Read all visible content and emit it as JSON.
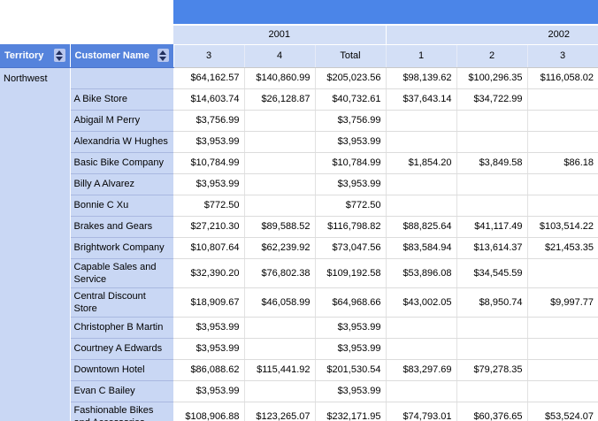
{
  "colors": {
    "band": "#4b85e8",
    "hdr": "#5583dc",
    "lightblue": "#d3dff6",
    "leftcol": "#c9d7f4",
    "custline": "#a9b8e0",
    "grid": "#dcdcdc",
    "iconbg": "#b9c7ee",
    "iconfg": "#222f5e"
  },
  "table": {
    "column_headers": {
      "territory": "Territory",
      "customer": "Customer Name"
    },
    "year_groups": [
      {
        "label": "2001",
        "span": 3
      },
      {
        "label": "2002",
        "span": 3
      }
    ],
    "period_headers": [
      "3",
      "4",
      "Total",
      "1",
      "2",
      "3"
    ],
    "rows": [
      {
        "territory": "Northwest",
        "customer": "",
        "values": [
          "$64,162.57",
          "$140,860.99",
          "$205,023.56",
          "$98,139.62",
          "$100,296.35",
          "$116,058.02"
        ]
      },
      {
        "customer": "A Bike Store",
        "values": [
          "$14,603.74",
          "$26,128.87",
          "$40,732.61",
          "$37,643.14",
          "$34,722.99",
          ""
        ]
      },
      {
        "customer": "Abigail M Perry",
        "values": [
          "$3,756.99",
          "",
          "$3,756.99",
          "",
          "",
          ""
        ]
      },
      {
        "customer": "Alexandria W Hughes",
        "values": [
          "$3,953.99",
          "",
          "$3,953.99",
          "",
          "",
          ""
        ]
      },
      {
        "customer": "Basic Bike Company",
        "values": [
          "$10,784.99",
          "",
          "$10,784.99",
          "$1,854.20",
          "$3,849.58",
          "$86.18"
        ]
      },
      {
        "customer": "Billy A Alvarez",
        "values": [
          "$3,953.99",
          "",
          "$3,953.99",
          "",
          "",
          ""
        ]
      },
      {
        "customer": "Bonnie C Xu",
        "values": [
          "$772.50",
          "",
          "$772.50",
          "",
          "",
          ""
        ]
      },
      {
        "customer": "Brakes and Gears",
        "values": [
          "$27,210.30",
          "$89,588.52",
          "$116,798.82",
          "$88,825.64",
          "$41,117.49",
          "$103,514.22"
        ]
      },
      {
        "customer": "Brightwork Company",
        "values": [
          "$10,807.64",
          "$62,239.92",
          "$73,047.56",
          "$83,584.94",
          "$13,614.37",
          "$21,453.35"
        ]
      },
      {
        "customer": "Capable Sales and Service",
        "values": [
          "$32,390.20",
          "$76,802.38",
          "$109,192.58",
          "$53,896.08",
          "$34,545.59",
          ""
        ]
      },
      {
        "customer": "Central Discount Store",
        "values": [
          "$18,909.67",
          "$46,058.99",
          "$64,968.66",
          "$43,002.05",
          "$8,950.74",
          "$9,997.77"
        ]
      },
      {
        "customer": "Christopher B Martin",
        "values": [
          "$3,953.99",
          "",
          "$3,953.99",
          "",
          "",
          ""
        ]
      },
      {
        "customer": "Courtney A Edwards",
        "values": [
          "$3,953.99",
          "",
          "$3,953.99",
          "",
          "",
          ""
        ]
      },
      {
        "customer": "Downtown Hotel",
        "values": [
          "$86,088.62",
          "$115,441.92",
          "$201,530.54",
          "$83,297.69",
          "$79,278.35",
          ""
        ]
      },
      {
        "customer": "Evan C Bailey",
        "values": [
          "$3,953.99",
          "",
          "$3,953.99",
          "",
          "",
          ""
        ]
      },
      {
        "customer": "Fashionable Bikes and Accessories",
        "values": [
          "$108,906.88",
          "$123,265.07",
          "$232,171.95",
          "$74,793.01",
          "$60,376.65",
          "$53,524.07"
        ]
      }
    ]
  }
}
